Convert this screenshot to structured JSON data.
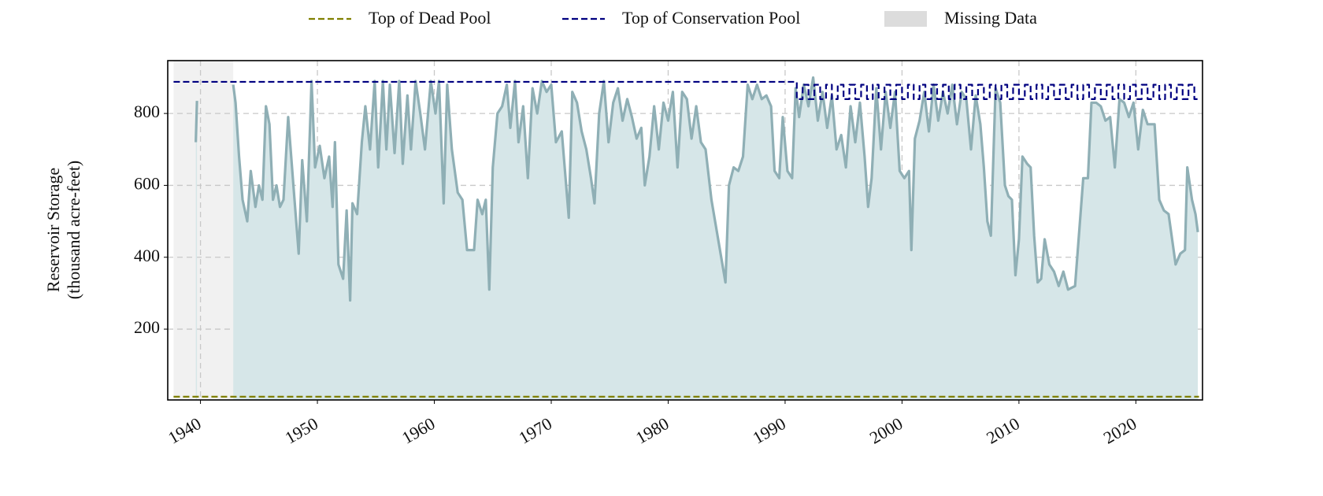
{
  "chart_data": {
    "type": "line",
    "ylabel": [
      "Reservoir Storage",
      "(thousand acre-feet)"
    ],
    "xlim": [
      1937.2,
      2025.7
    ],
    "xticks": [
      1940,
      1950,
      1960,
      1970,
      1980,
      1990,
      2000,
      2010,
      2020
    ],
    "ylim": [
      3,
      947
    ],
    "yticks": [
      200,
      400,
      600,
      800
    ],
    "grid": true,
    "legend": "top",
    "missing_data": {
      "name": "Missing Data",
      "color": "#dcdcdc",
      "spans": [
        [
          1937.7,
          1942.8
        ]
      ]
    },
    "series": [
      {
        "name": "Top of Dead Pool",
        "color": "#808000",
        "dashed": true,
        "x": [
          1937.7,
          2025.4
        ],
        "values": [
          12,
          12
        ]
      },
      {
        "name": "Top of Conservation Pool",
        "color": "#000080",
        "dashed": true,
        "x": [
          1937.7,
          1991,
          1991,
          1991.5,
          1991.5,
          1992,
          1992,
          1992.5,
          1992.5,
          1993,
          1993,
          1993.5,
          1993.5,
          1994,
          1994,
          1994.5,
          1994.5,
          1995,
          1995,
          1995.5,
          1995.5,
          1996,
          1996,
          1996.5,
          1996.5,
          1997,
          1997,
          1997.5,
          1997.5,
          1998,
          1998,
          1998.5,
          1998.5,
          1999,
          1999,
          1999.5,
          1999.5,
          2000,
          2000,
          2000.5,
          2000.5,
          2001,
          2001,
          2001.5,
          2001.5,
          2002,
          2002,
          2002.5,
          2002.5,
          2003,
          2003,
          2003.5,
          2003.5,
          2004,
          2004,
          2004.5,
          2004.5,
          2005,
          2005,
          2005.5,
          2005.5,
          2006,
          2006,
          2006.5,
          2006.5,
          2007,
          2007,
          2007.5,
          2007.5,
          2008,
          2008,
          2008.5,
          2008.5,
          2009,
          2009,
          2009.5,
          2009.5,
          2010,
          2010,
          2010.5,
          2010.5,
          2011,
          2011,
          2011.5,
          2011.5,
          2012,
          2012,
          2012.5,
          2012.5,
          2013,
          2013,
          2013.5,
          2013.5,
          2014,
          2014,
          2014.5,
          2014.5,
          2015,
          2015,
          2015.5,
          2015.5,
          2016,
          2016,
          2016.5,
          2016.5,
          2017,
          2017,
          2017.5,
          2017.5,
          2018,
          2018,
          2018.5,
          2018.5,
          2019,
          2019,
          2019.5,
          2019.5,
          2020,
          2020,
          2020.5,
          2020.5,
          2021,
          2021,
          2021.5,
          2021.5,
          2022,
          2022,
          2022.5,
          2022.5,
          2023,
          2023,
          2023.5,
          2023.5,
          2024,
          2024,
          2024.5,
          2024.5,
          2025,
          2025,
          2025.4
        ],
        "values": [
          888,
          888,
          840,
          840,
          880,
          880,
          840,
          840,
          880,
          880,
          840,
          840,
          880,
          880,
          840,
          840,
          880,
          880,
          840,
          840,
          880,
          880,
          840,
          840,
          880,
          880,
          840,
          840,
          880,
          880,
          840,
          840,
          880,
          880,
          840,
          840,
          880,
          880,
          840,
          840,
          880,
          880,
          840,
          840,
          880,
          880,
          840,
          840,
          880,
          880,
          840,
          840,
          880,
          880,
          840,
          840,
          880,
          880,
          840,
          840,
          880,
          880,
          840,
          840,
          880,
          880,
          840,
          840,
          880,
          880,
          840,
          840,
          880,
          880,
          840,
          840,
          880,
          880,
          840,
          840,
          880,
          880,
          840,
          840,
          880,
          880,
          840,
          840,
          880,
          880,
          840,
          840,
          880,
          880,
          840,
          840,
          880,
          880,
          840,
          840,
          880,
          880,
          840,
          840,
          880,
          880,
          840,
          840,
          880,
          880,
          840,
          840,
          880,
          880,
          840,
          840,
          880,
          880,
          840,
          840,
          880,
          880,
          840,
          840,
          880,
          880,
          840,
          840,
          880,
          880,
          840,
          840,
          880,
          880,
          840,
          840,
          880,
          880,
          840,
          840
        ]
      },
      {
        "color": "#8fafb5",
        "fill": "#d6e6e8",
        "x": [
          1939.6,
          1939.7,
          1941,
          1942.8,
          1943.0,
          1943.3,
          1943.6,
          1944.0,
          1944.3,
          1944.7,
          1945.0,
          1945.3,
          1945.6,
          1945.9,
          1946.2,
          1946.5,
          1946.8,
          1947.1,
          1947.5,
          1947.9,
          1948.4,
          1948.7,
          1949.1,
          1949.5,
          1949.8,
          1950.2,
          1950.6,
          1951.0,
          1951.3,
          1951.5,
          1951.8,
          1952.2,
          1952.5,
          1952.8,
          1953.0,
          1953.4,
          1953.8,
          1954.1,
          1954.5,
          1954.9,
          1955.2,
          1955.6,
          1955.9,
          1956.2,
          1956.6,
          1957.0,
          1957.3,
          1957.7,
          1958.0,
          1958.4,
          1958.8,
          1959.2,
          1959.7,
          1960.1,
          1960.4,
          1960.8,
          1961.1,
          1961.5,
          1962.0,
          1962.4,
          1962.8,
          1963.4,
          1963.7,
          1964.1,
          1964.4,
          1964.7,
          1965.0,
          1965.4,
          1965.8,
          1966.2,
          1966.5,
          1966.9,
          1967.2,
          1967.6,
          1968.0,
          1968.4,
          1968.8,
          1969.2,
          1969.6,
          1970.0,
          1970.4,
          1970.9,
          1971.5,
          1971.8,
          1972.2,
          1972.6,
          1973.0,
          1973.4,
          1973.7,
          1974.1,
          1974.5,
          1974.9,
          1975.3,
          1975.7,
          1976.1,
          1976.5,
          1976.9,
          1977.3,
          1977.7,
          1978.0,
          1978.4,
          1978.8,
          1979.2,
          1979.6,
          1980.0,
          1980.4,
          1980.8,
          1981.2,
          1981.6,
          1982.0,
          1982.4,
          1982.8,
          1983.2,
          1983.7,
          1984.9,
          1985.2,
          1985.6,
          1986.0,
          1986.4,
          1986.8,
          1987.2,
          1987.6,
          1988.0,
          1988.4,
          1988.8,
          1989.1,
          1989.5,
          1989.8,
          1990.2,
          1990.6,
          1990.9,
          1991.2,
          1991.6,
          1992.0,
          1992.4,
          1992.8,
          1993.2,
          1993.6,
          1994.0,
          1994.4,
          1994.8,
          1995.2,
          1995.6,
          1996.0,
          1996.4,
          1996.8,
          1997.1,
          1997.4,
          1997.8,
          1998.2,
          1998.6,
          1999.0,
          1999.4,
          1999.8,
          2000.2,
          2000.6,
          2000.8,
          2001.1,
          2001.5,
          2001.9,
          2002.3,
          2002.7,
          2003.1,
          2003.5,
          2003.9,
          2004.3,
          2004.7,
          2005.1,
          2005.5,
          2005.9,
          2006.3,
          2006.7,
          2007.0,
          2007.3,
          2007.6,
          2008.0,
          2008.4,
          2008.8,
          2009.1,
          2009.4,
          2009.7,
          2010.0,
          2010.3,
          2010.7,
          2011.0,
          2011.3,
          2011.6,
          2011.9,
          2012.2,
          2012.6,
          2013.0,
          2013.4,
          2013.8,
          2014.2,
          2014.8,
          2015.5,
          2015.9,
          2016.2,
          2016.6,
          2017.0,
          2017.4,
          2017.8,
          2018.2,
          2018.6,
          2019.0,
          2019.4,
          2019.8,
          2020.2,
          2020.6,
          2021.0,
          2021.6,
          2022.0,
          2022.4,
          2022.8,
          2023.4,
          2023.8,
          2024.2,
          2024.4,
          2024.8,
          2025.1,
          2025.3
        ],
        "values": [
          720,
          835,
          null,
          880,
          830,
          680,
          560,
          500,
          640,
          540,
          600,
          560,
          820,
          770,
          560,
          600,
          540,
          560,
          790,
          620,
          410,
          670,
          500,
          890,
          650,
          710,
          620,
          680,
          540,
          720,
          380,
          340,
          530,
          280,
          550,
          520,
          720,
          820,
          700,
          890,
          650,
          890,
          700,
          880,
          690,
          890,
          660,
          850,
          700,
          890,
          800,
          700,
          890,
          800,
          890,
          550,
          880,
          700,
          580,
          560,
          420,
          420,
          560,
          520,
          560,
          310,
          650,
          800,
          820,
          880,
          760,
          890,
          720,
          820,
          620,
          870,
          800,
          890,
          860,
          880,
          720,
          750,
          510,
          860,
          830,
          750,
          700,
          620,
          550,
          800,
          890,
          720,
          830,
          870,
          780,
          840,
          790,
          730,
          760,
          600,
          680,
          820,
          700,
          830,
          780,
          860,
          650,
          860,
          840,
          730,
          820,
          720,
          700,
          560,
          330,
          600,
          650,
          640,
          680,
          880,
          840,
          880,
          840,
          850,
          820,
          640,
          620,
          790,
          640,
          620,
          870,
          790,
          880,
          820,
          900,
          780,
          860,
          760,
          850,
          700,
          740,
          650,
          820,
          720,
          830,
          680,
          540,
          620,
          870,
          700,
          860,
          760,
          860,
          640,
          620,
          640,
          420,
          730,
          780,
          860,
          750,
          880,
          780,
          860,
          800,
          880,
          770,
          860,
          840,
          700,
          850,
          770,
          650,
          500,
          460,
          870,
          830,
          600,
          570,
          560,
          350,
          450,
          680,
          660,
          650,
          460,
          330,
          340,
          450,
          380,
          360,
          320,
          360,
          310,
          320,
          620,
          620,
          830,
          830,
          820,
          780,
          790,
          650,
          840,
          830,
          790,
          830,
          700,
          810,
          770,
          770,
          560,
          530,
          520,
          380,
          410,
          420,
          650,
          560,
          520,
          470
        ]
      }
    ]
  }
}
